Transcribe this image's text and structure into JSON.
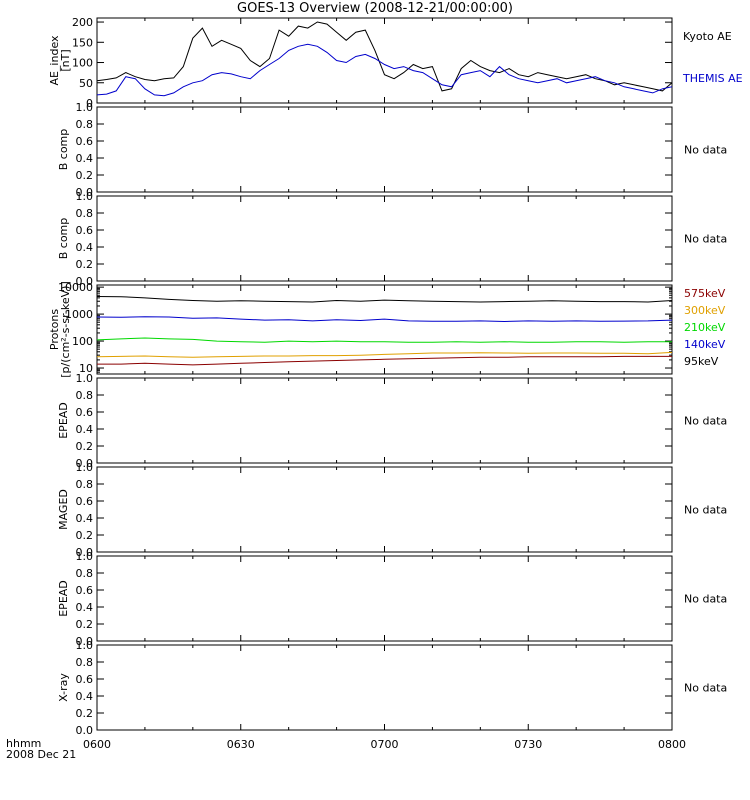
{
  "title": "GOES-13 Overview (2008-12-21/00:00:00)",
  "footer": {
    "line1": "hhmm",
    "line2": "2008 Dec 21"
  },
  "colors": {
    "black": "#000000",
    "blue": "#0000cc",
    "green": "#00d800",
    "orange": "#e0a000",
    "maroon": "#8b0000"
  },
  "chart_data": [
    {
      "type": "line",
      "ylabel": [
        "AE_index",
        "[nT]"
      ],
      "ylim": [
        0,
        210
      ],
      "yticks": [
        0,
        50,
        100,
        150,
        200
      ],
      "ytick_labels": [
        "0",
        "50",
        "100",
        "150",
        "200"
      ],
      "x_ticks": [
        "0600",
        "0630",
        "0700",
        "0730",
        "0800"
      ],
      "x_range_minutes": [
        0,
        120
      ],
      "series": [
        {
          "name": "Kyoto AE",
          "color": "#000000",
          "x": [
            0,
            2,
            4,
            6,
            8,
            10,
            12,
            14,
            16,
            18,
            20,
            22,
            24,
            26,
            28,
            30,
            32,
            34,
            36,
            38,
            40,
            42,
            44,
            46,
            48,
            50,
            52,
            54,
            56,
            58,
            60,
            62,
            64,
            66,
            68,
            70,
            72,
            74,
            76,
            78,
            80,
            82,
            84,
            86,
            88,
            90,
            92,
            94,
            96,
            98,
            100,
            102,
            104,
            106,
            108,
            110,
            112,
            114,
            116,
            118,
            120
          ],
          "values": [
            55,
            58,
            62,
            75,
            65,
            58,
            55,
            60,
            62,
            90,
            160,
            185,
            140,
            155,
            145,
            135,
            105,
            90,
            110,
            180,
            165,
            190,
            185,
            200,
            195,
            175,
            155,
            175,
            180,
            130,
            70,
            60,
            75,
            95,
            85,
            90,
            30,
            35,
            85,
            105,
            90,
            80,
            75,
            85,
            70,
            65,
            75,
            70,
            65,
            60,
            65,
            70,
            60,
            55,
            45,
            50,
            45,
            40,
            35,
            30,
            50
          ]
        },
        {
          "name": "THEMIS AE",
          "color": "#0000cc",
          "x": [
            0,
            2,
            4,
            6,
            8,
            10,
            12,
            14,
            16,
            18,
            20,
            22,
            24,
            26,
            28,
            30,
            32,
            34,
            36,
            38,
            40,
            42,
            44,
            46,
            48,
            50,
            52,
            54,
            56,
            58,
            60,
            62,
            64,
            66,
            68,
            70,
            72,
            74,
            76,
            78,
            80,
            82,
            84,
            86,
            88,
            90,
            92,
            94,
            96,
            98,
            100,
            102,
            104,
            106,
            108,
            110,
            112,
            114,
            116,
            118,
            120
          ],
          "values": [
            20,
            22,
            30,
            65,
            60,
            35,
            20,
            18,
            25,
            40,
            50,
            55,
            70,
            75,
            72,
            65,
            60,
            80,
            95,
            110,
            130,
            140,
            145,
            140,
            125,
            105,
            100,
            115,
            120,
            110,
            95,
            85,
            90,
            80,
            75,
            60,
            45,
            40,
            70,
            75,
            80,
            65,
            90,
            70,
            60,
            55,
            50,
            55,
            60,
            50,
            55,
            60,
            65,
            55,
            50,
            40,
            35,
            30,
            25,
            35,
            40
          ]
        }
      ]
    },
    {
      "type": "line",
      "ylabel": [
        "B comp"
      ],
      "ylim": [
        0,
        1.0
      ],
      "yticks": [
        0,
        0.2,
        0.4,
        0.6,
        0.8,
        1.0
      ],
      "ytick_labels": [
        "0.0",
        "0.2",
        "0.4",
        "0.6",
        "0.8",
        "1.0"
      ],
      "x_ticks": [
        "0600",
        "0630",
        "0700",
        "0730",
        "0800"
      ],
      "x_range_minutes": [
        0,
        120
      ],
      "note": "No data",
      "series": []
    },
    {
      "type": "line",
      "ylabel": [
        "B comp"
      ],
      "ylim": [
        0,
        1.0
      ],
      "yticks": [
        0,
        0.2,
        0.4,
        0.6,
        0.8,
        1.0
      ],
      "ytick_labels": [
        "0.0",
        "0.2",
        "0.4",
        "0.6",
        "0.8",
        "1.0"
      ],
      "x_ticks": [
        "0600",
        "0630",
        "0700",
        "0730",
        "0800"
      ],
      "x_range_minutes": [
        0,
        120
      ],
      "note": "No data",
      "series": []
    },
    {
      "type": "line",
      "log_scale": true,
      "ylabel": [
        "Protons",
        "[p/(cm²-s-sr-keV)]"
      ],
      "ylim": [
        6,
        12000
      ],
      "yticks": [
        10,
        100,
        1000,
        10000
      ],
      "ytick_labels": [
        "10",
        "100",
        "1000",
        "10000"
      ],
      "x_ticks": [
        "0600",
        "0630",
        "0700",
        "0730",
        "0800"
      ],
      "x_range_minutes": [
        0,
        120
      ],
      "legend_items": [
        {
          "name": "575keV",
          "color": "#8b0000"
        },
        {
          "name": "300keV",
          "color": "#e0a000"
        },
        {
          "name": "210keV",
          "color": "#00d800"
        },
        {
          "name": "140keV",
          "color": "#0000cc"
        },
        {
          "name": "95keV",
          "color": "#000000"
        }
      ],
      "series": [
        {
          "name": "95keV",
          "color": "#000000",
          "x": [
            0,
            5,
            10,
            15,
            20,
            25,
            30,
            35,
            40,
            45,
            50,
            55,
            60,
            65,
            70,
            75,
            80,
            85,
            90,
            95,
            100,
            105,
            110,
            115,
            120
          ],
          "values": [
            4500,
            4400,
            4000,
            3500,
            3200,
            3000,
            3100,
            3000,
            2900,
            2800,
            3200,
            3000,
            3300,
            3100,
            3000,
            2900,
            2800,
            2900,
            3000,
            3100,
            3000,
            2900,
            2900,
            2800,
            3200
          ]
        },
        {
          "name": "140keV",
          "color": "#0000cc",
          "x": [
            0,
            5,
            10,
            15,
            20,
            25,
            30,
            35,
            40,
            45,
            50,
            55,
            60,
            65,
            70,
            75,
            80,
            85,
            90,
            95,
            100,
            105,
            110,
            115,
            120
          ],
          "values": [
            780,
            760,
            800,
            780,
            700,
            720,
            650,
            600,
            620,
            560,
            620,
            580,
            650,
            560,
            540,
            540,
            560,
            530,
            560,
            540,
            560,
            540,
            550,
            560,
            600
          ]
        },
        {
          "name": "210keV",
          "color": "#00d800",
          "x": [
            0,
            5,
            10,
            15,
            20,
            25,
            30,
            35,
            40,
            45,
            50,
            55,
            60,
            65,
            70,
            75,
            80,
            85,
            90,
            95,
            100,
            105,
            110,
            115,
            120
          ],
          "values": [
            110,
            120,
            130,
            120,
            115,
            100,
            95,
            90,
            100,
            95,
            100,
            95,
            95,
            90,
            90,
            95,
            90,
            95,
            90,
            90,
            95,
            95,
            90,
            95,
            95
          ]
        },
        {
          "name": "300keV",
          "color": "#e0a000",
          "x": [
            0,
            5,
            10,
            15,
            20,
            25,
            30,
            35,
            40,
            45,
            50,
            55,
            60,
            65,
            70,
            75,
            80,
            85,
            90,
            95,
            100,
            105,
            110,
            115,
            120
          ],
          "values": [
            26,
            27,
            28,
            26,
            25,
            26,
            27,
            28,
            28,
            29,
            29,
            30,
            32,
            34,
            36,
            36,
            37,
            36,
            35,
            36,
            36,
            35,
            35,
            34,
            38
          ]
        },
        {
          "name": "575keV",
          "color": "#8b0000",
          "x": [
            0,
            5,
            10,
            15,
            20,
            25,
            30,
            35,
            40,
            45,
            50,
            55,
            60,
            65,
            70,
            75,
            80,
            85,
            90,
            95,
            100,
            105,
            110,
            115,
            120
          ],
          "values": [
            14,
            14,
            15,
            14,
            13,
            14,
            15,
            16,
            17,
            18,
            19,
            20,
            21,
            22,
            23,
            24,
            25,
            25,
            26,
            26,
            26,
            26,
            27,
            27,
            27
          ]
        }
      ]
    },
    {
      "type": "line",
      "ylabel": [
        "EPEAD"
      ],
      "ylim": [
        0,
        1.0
      ],
      "yticks": [
        0,
        0.2,
        0.4,
        0.6,
        0.8,
        1.0
      ],
      "ytick_labels": [
        "0.0",
        "0.2",
        "0.4",
        "0.6",
        "0.8",
        "1.0"
      ],
      "x_ticks": [
        "0600",
        "0630",
        "0700",
        "0730",
        "0800"
      ],
      "x_range_minutes": [
        0,
        120
      ],
      "note": "No data",
      "series": []
    },
    {
      "type": "line",
      "ylabel": [
        "MAGED"
      ],
      "ylim": [
        0,
        1.0
      ],
      "yticks": [
        0,
        0.2,
        0.4,
        0.6,
        0.8,
        1.0
      ],
      "ytick_labels": [
        "0.0",
        "0.2",
        "0.4",
        "0.6",
        "0.8",
        "1.0"
      ],
      "x_ticks": [
        "0600",
        "0630",
        "0700",
        "0730",
        "0800"
      ],
      "x_range_minutes": [
        0,
        120
      ],
      "note": "No data",
      "series": []
    },
    {
      "type": "line",
      "ylabel": [
        "EPEAD"
      ],
      "ylim": [
        0,
        1.0
      ],
      "yticks": [
        0,
        0.2,
        0.4,
        0.6,
        0.8,
        1.0
      ],
      "ytick_labels": [
        "0.0",
        "0.2",
        "0.4",
        "0.6",
        "0.8",
        "1.0"
      ],
      "x_ticks": [
        "0600",
        "0630",
        "0700",
        "0730",
        "0800"
      ],
      "x_range_minutes": [
        0,
        120
      ],
      "note": "No data",
      "series": []
    },
    {
      "type": "line",
      "ylabel": [
        "X-ray"
      ],
      "ylim": [
        0,
        1.0
      ],
      "yticks": [
        0,
        0.2,
        0.4,
        0.6,
        0.8,
        1.0
      ],
      "ytick_labels": [
        "0.0",
        "0.2",
        "0.4",
        "0.6",
        "0.8",
        "1.0"
      ],
      "x_ticks": [
        "0600",
        "0630",
        "0700",
        "0730",
        "0800"
      ],
      "x_range_minutes": [
        0,
        120
      ],
      "note": "No data",
      "series": []
    }
  ]
}
